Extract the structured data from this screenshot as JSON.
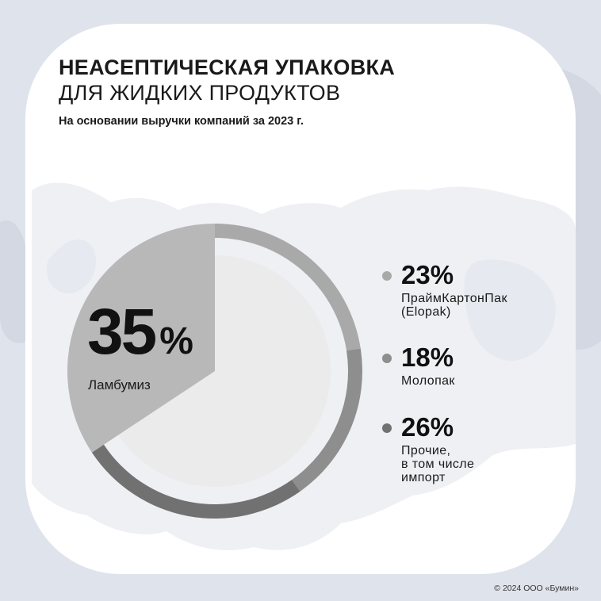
{
  "header": {
    "title_line1": "НЕАСЕПТИЧЕСКАЯ УПАКОВКА",
    "title_line2": "ДЛЯ ЖИДКИХ ПРОДУКТОВ",
    "subtitle": "На основании выручки компаний за 2023 г."
  },
  "highlight": {
    "value": "35",
    "unit": "%",
    "label": "Ламбумиз"
  },
  "legend": [
    {
      "value": "23%",
      "label": "ПраймКартонПак\n(Elopak)",
      "color": "#a9a9a9"
    },
    {
      "value": "18%",
      "label": "Молопак",
      "color": "#8e8e8e"
    },
    {
      "value": "26%",
      "label": "Прочие,\nв том числе\nимпорт",
      "color": "#717171"
    }
  ],
  "chart_data": {
    "type": "pie",
    "categories": [
      "Ламбумиз",
      "ПраймКартонПак (Elopak)",
      "Молопак",
      "Прочие, в том числе импорт"
    ],
    "values": [
      35,
      23,
      18,
      26
    ],
    "unit": "%",
    "colors": [
      "#b8b8b8",
      "#a9a9a9",
      "#8e8e8e",
      "#717171"
    ]
  },
  "colors": {
    "background": "#dfe3ec",
    "card": "#ffffff",
    "map": "#eef0f4",
    "inner_circle": "#ebebeb"
  },
  "footer": {
    "copyright": "© 2024 ООО «Бумин»"
  }
}
